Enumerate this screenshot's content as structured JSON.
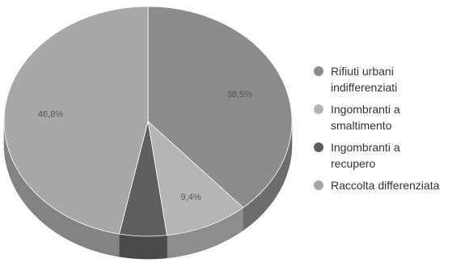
{
  "chart_data": {
    "type": "pie",
    "title": "",
    "slices": [
      {
        "label": "Rifiuti urbani\nindifferenziati",
        "value": 38.5,
        "display": "38,5%",
        "color": "#8c8c8c"
      },
      {
        "label": "Ingombranti a\nsmaltimento",
        "value": 9.4,
        "display": "9,4%",
        "color": "#b5b5b5"
      },
      {
        "label": "Ingombranti a\nrecupero",
        "value": 5.3,
        "display": "",
        "color": "#5f5f5f"
      },
      {
        "label": "Raccolta differenziata",
        "value": 46.8,
        "display": "46,8%",
        "color": "#a8a8a8"
      }
    ],
    "legend_position": "right",
    "style": "3d"
  }
}
